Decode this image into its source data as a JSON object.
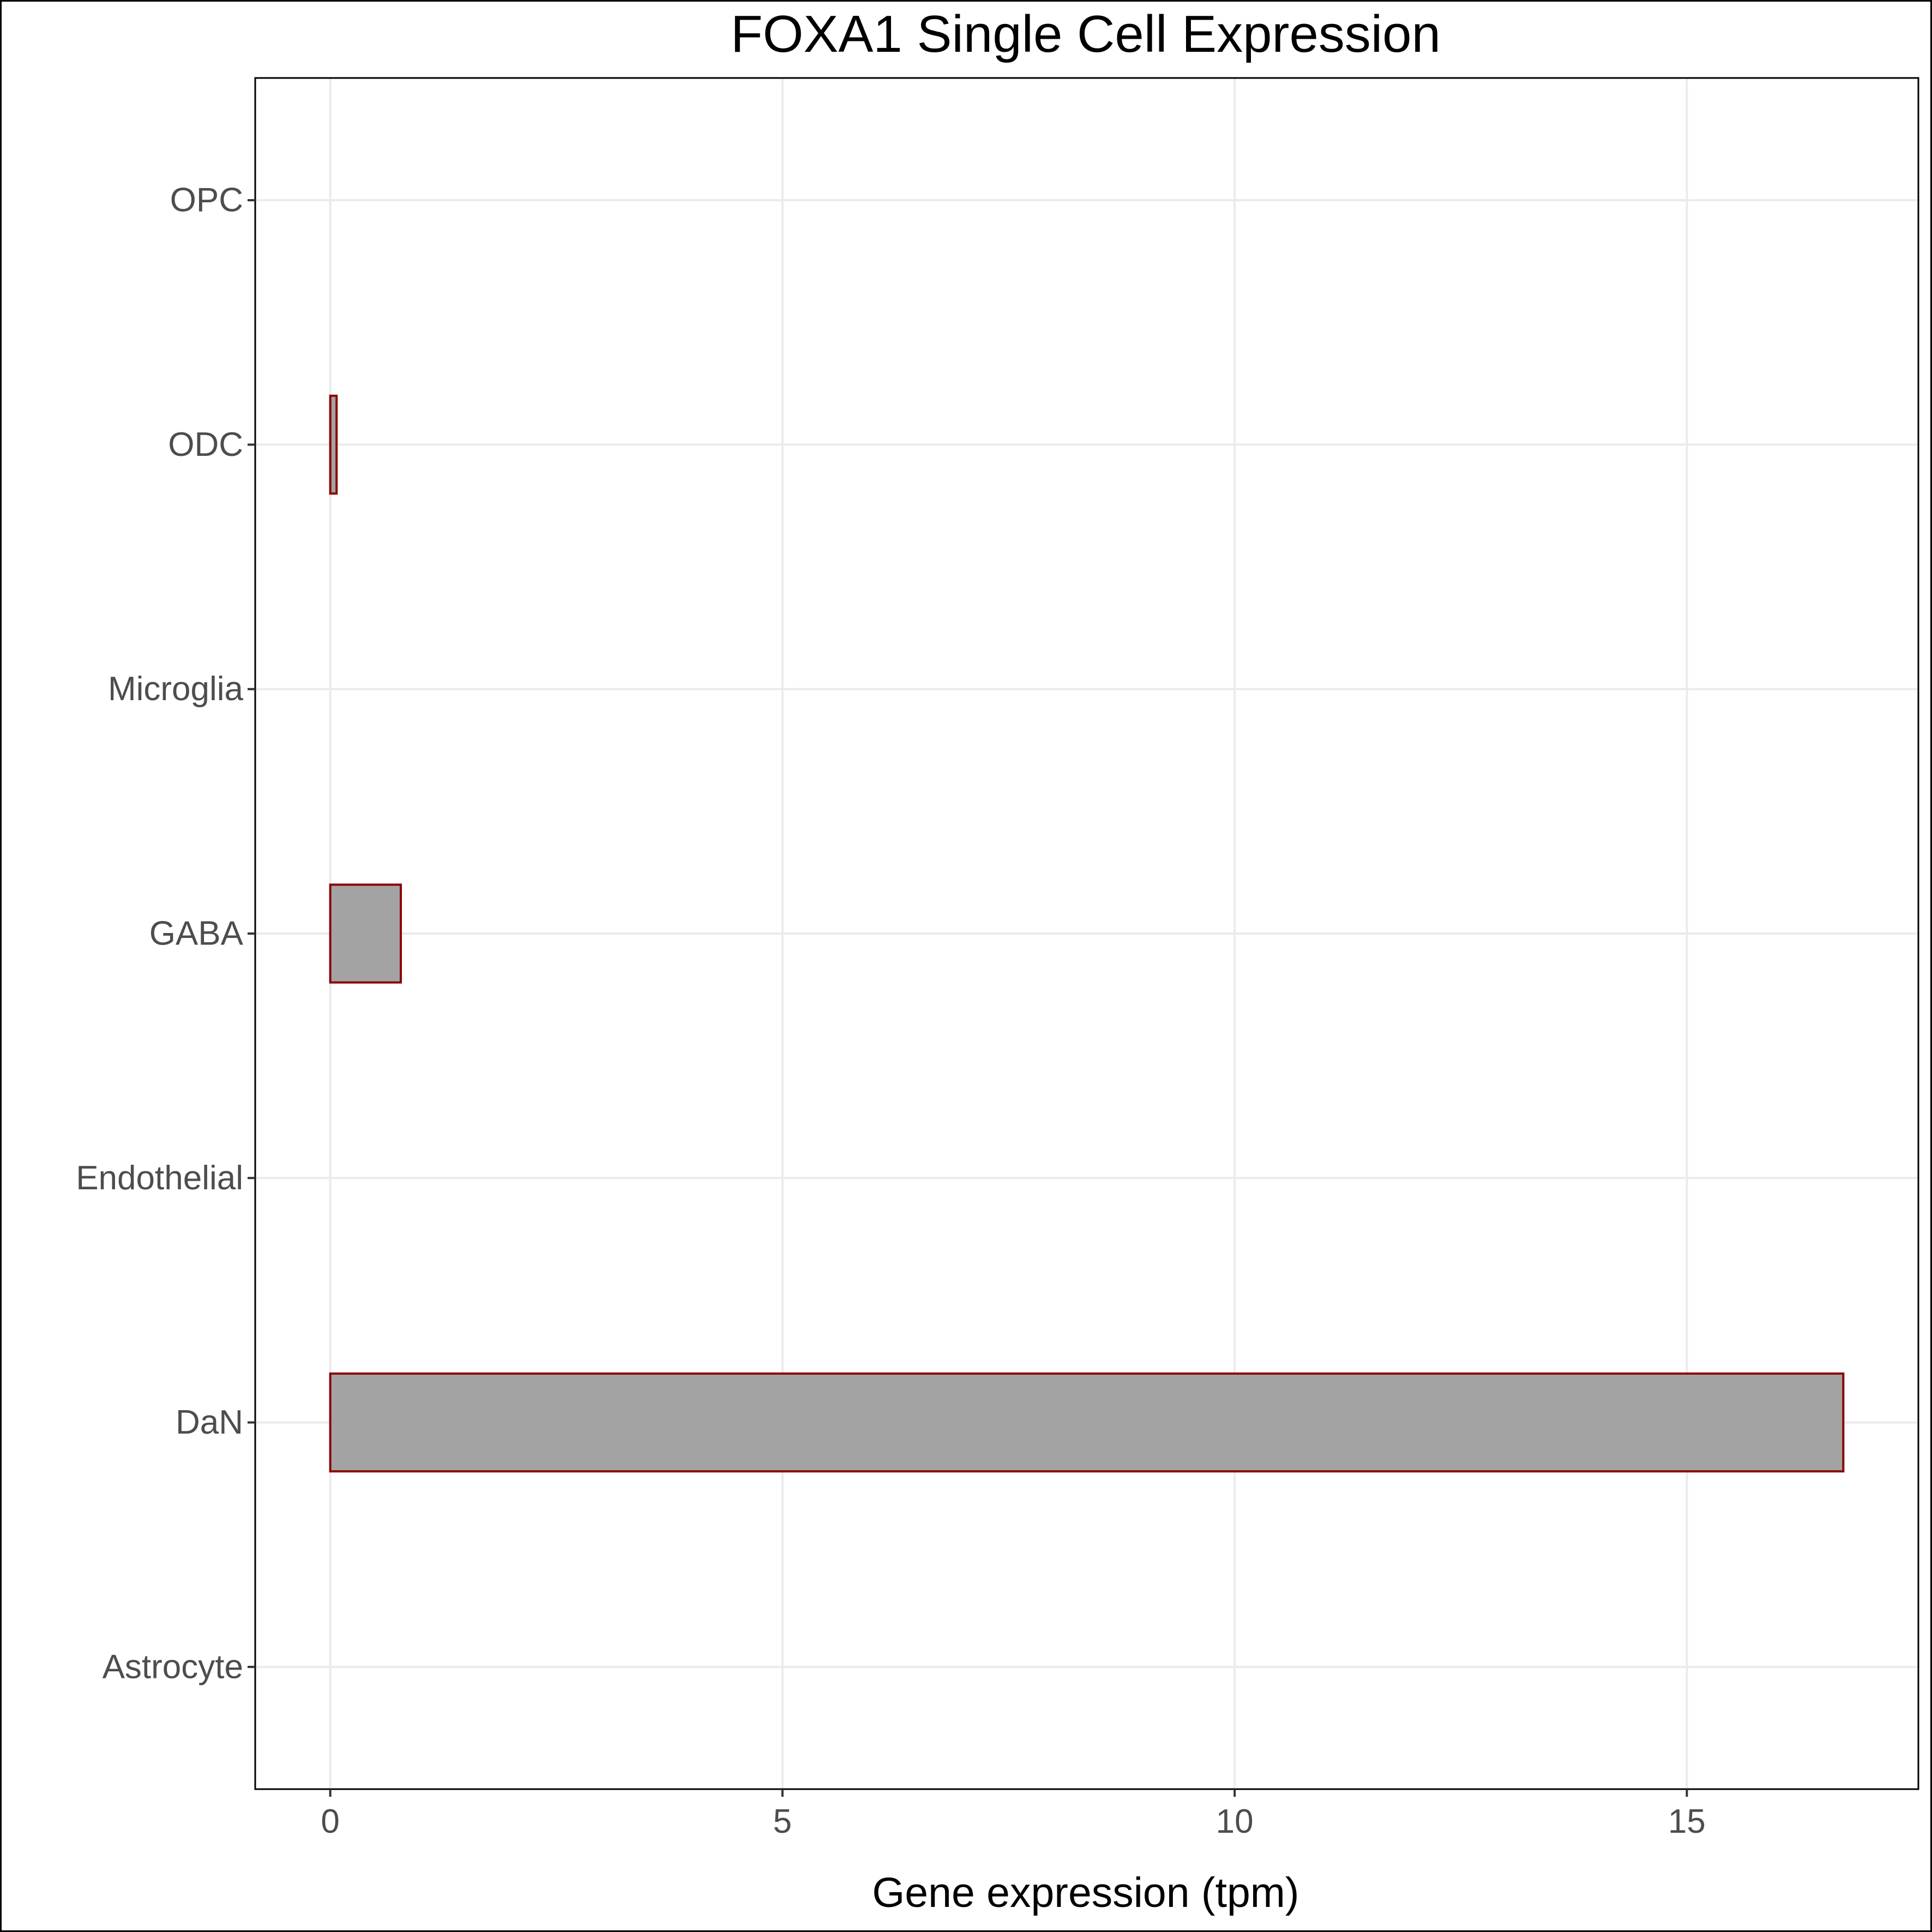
{
  "chart_data": {
    "type": "bar",
    "orientation": "horizontal",
    "title": "FOXA1 Single Cell Expression",
    "xlabel": "Gene expression (tpm)",
    "ylabel": "",
    "categories": [
      "Astrocyte",
      "DaN",
      "Endothelial",
      "GABA",
      "Microglia",
      "ODC",
      "OPC"
    ],
    "values": [
      0,
      16.73,
      0,
      0.78,
      0,
      0.07,
      0
    ],
    "xlim": [
      -0.83,
      17.56
    ],
    "xticks": [
      0,
      5,
      10,
      15
    ],
    "grid": true,
    "legend": "none",
    "colors": {
      "bar_fill": "#a3a3a3",
      "bar_outline": "#8b0000",
      "grid": "#ebebeb",
      "tick_text": "#4d4d4d"
    }
  }
}
